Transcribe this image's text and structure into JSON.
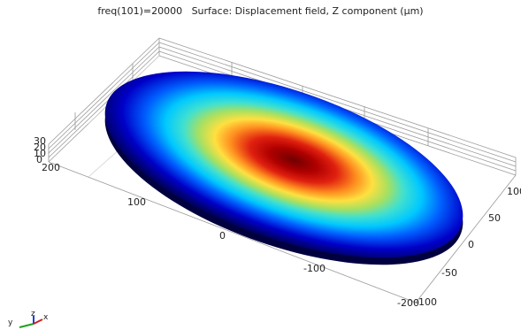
{
  "plot": {
    "title": "freq(101)=20000   Surface: Displacement field, Z component (µm)"
  },
  "axes": {
    "x_ticks": [
      "200",
      "100",
      "0",
      "-100",
      "-200"
    ],
    "y_ticks": [
      "100",
      "50",
      "0",
      "-50",
      "-100"
    ],
    "z_ticks": [
      "30",
      "20",
      "10",
      "0"
    ]
  },
  "triad": {
    "x": "x",
    "y": "y",
    "z": "z"
  },
  "colors": {
    "colormap": [
      "#00005a",
      "#0000c8",
      "#0060ff",
      "#00c8ff",
      "#40e0d0",
      "#a8e060",
      "#ffe040",
      "#ff9020",
      "#e02010",
      "#b00000",
      "#700000"
    ],
    "triad_x": "#d02020",
    "triad_y": "#20a020",
    "triad_z": "#2040d0"
  }
}
